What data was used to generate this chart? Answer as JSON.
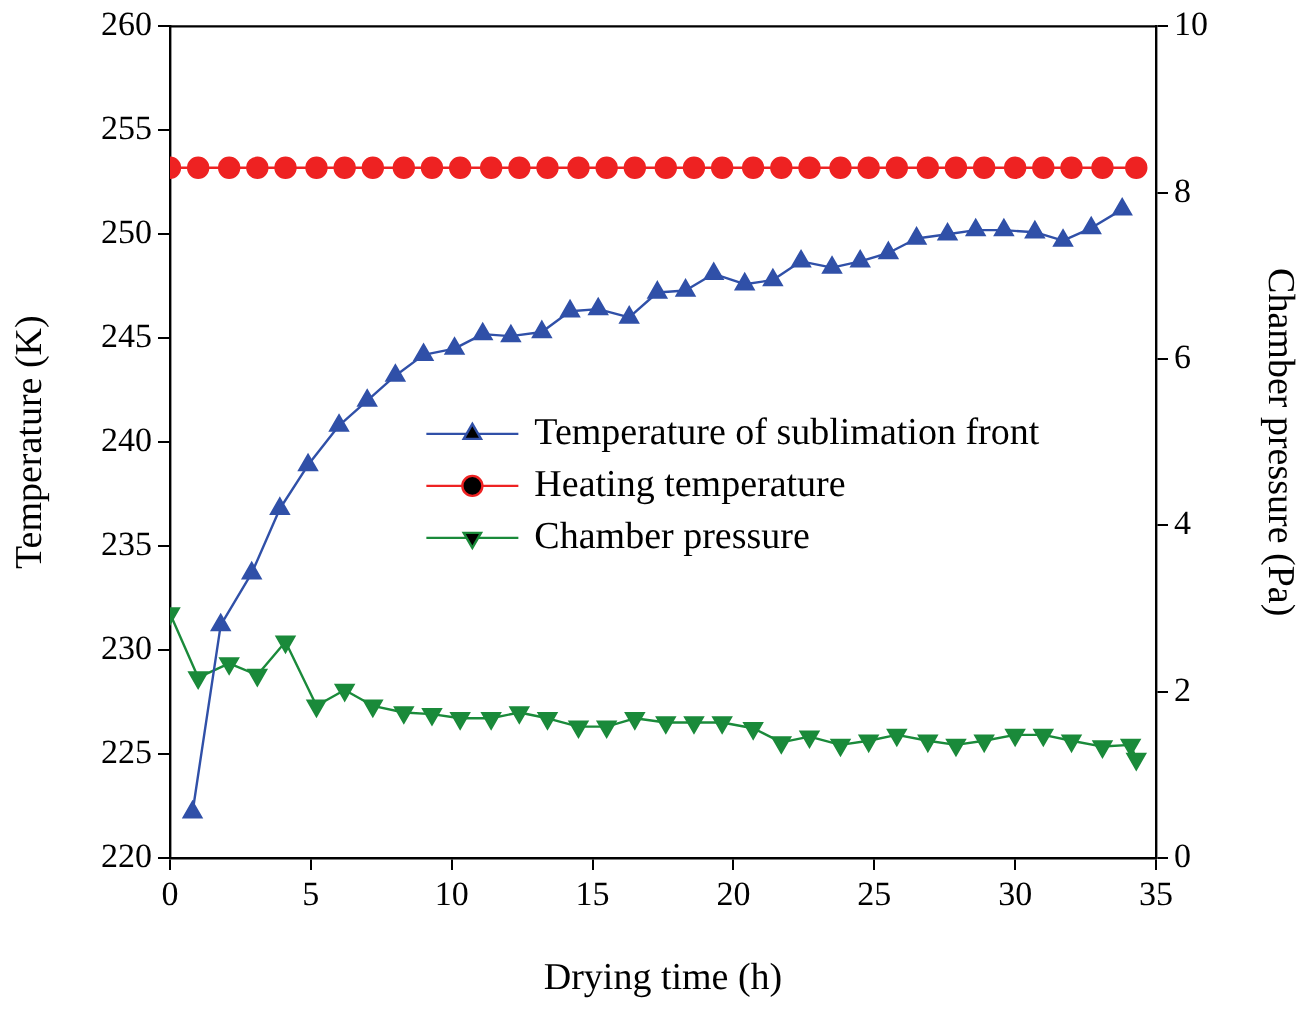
{
  "chart_data": {
    "type": "line",
    "xlabel": "Drying time (h)",
    "ylabel": "Temperature (K)",
    "y2label": "Chamber pressure (Pa)",
    "xlim": [
      0,
      35
    ],
    "xticks": [
      0,
      5,
      10,
      15,
      20,
      25,
      30,
      35
    ],
    "ylim": [
      220,
      260
    ],
    "yticks": [
      220,
      225,
      230,
      235,
      240,
      245,
      250,
      255,
      260
    ],
    "y2lim": [
      0,
      10
    ],
    "y2ticks": [
      0,
      2,
      4,
      6,
      8,
      10
    ],
    "grid": false,
    "legend": "right",
    "line_style": "solid",
    "series": [
      {
        "name": "Temperature of sublimation front",
        "color": "#3050a8",
        "marker": "triangle",
        "x": [
          0.8,
          1.8,
          2.9,
          3.9,
          4.9,
          6.0,
          7.0,
          8.0,
          9.0,
          10.1,
          11.1,
          12.1,
          13.2,
          14.2,
          15.2,
          16.3,
          17.3,
          18.3,
          19.3,
          20.4,
          21.4,
          22.4,
          23.5,
          24.5,
          25.5,
          26.5,
          27.6,
          28.6,
          29.6,
          30.7,
          31.7,
          32.7,
          33.8
        ],
        "values": [
          222.2,
          231.2,
          233.7,
          236.8,
          238.9,
          240.8,
          242.0,
          243.2,
          244.2,
          244.5,
          245.2,
          245.1,
          245.3,
          246.3,
          246.4,
          246.0,
          247.2,
          247.3,
          248.1,
          247.6,
          247.8,
          248.7,
          248.4,
          248.7,
          249.1,
          249.8,
          250.0,
          250.2,
          250.2,
          250.1,
          249.7,
          250.3,
          251.2
        ]
      },
      {
        "name": "Heating temperature",
        "color": "#ee2222",
        "marker": "circle",
        "x": [
          0,
          1.0,
          2.1,
          3.1,
          4.1,
          5.2,
          6.2,
          7.2,
          8.3,
          9.3,
          10.3,
          11.4,
          12.4,
          13.4,
          14.5,
          15.5,
          16.5,
          17.6,
          18.6,
          19.6,
          20.7,
          21.7,
          22.7,
          23.8,
          24.8,
          25.8,
          26.9,
          27.9,
          28.9,
          30.0,
          31.0,
          32.0,
          33.1,
          34.3
        ],
        "values": [
          253.2,
          253.2,
          253.2,
          253.2,
          253.2,
          253.2,
          253.2,
          253.2,
          253.2,
          253.2,
          253.2,
          253.2,
          253.2,
          253.2,
          253.2,
          253.2,
          253.2,
          253.2,
          253.2,
          253.2,
          253.2,
          253.2,
          253.2,
          253.2,
          253.2,
          253.2,
          253.2,
          253.2,
          253.2,
          253.2,
          253.2,
          253.2,
          253.2,
          253.2
        ]
      },
      {
        "name": "Chamber pressure",
        "color": "#1a8a3a",
        "marker": "triangle-down",
        "axis": "y2",
        "x": [
          0,
          1.0,
          2.1,
          3.1,
          4.1,
          5.2,
          6.2,
          7.2,
          8.3,
          9.3,
          10.3,
          11.4,
          12.4,
          13.4,
          14.5,
          15.5,
          16.5,
          17.6,
          18.6,
          19.6,
          20.7,
          21.7,
          22.7,
          23.8,
          24.8,
          25.8,
          26.9,
          27.9,
          28.9,
          30.0,
          31.0,
          32.0,
          33.1,
          34.1,
          34.3
        ],
        "values": [
          2.94,
          2.17,
          2.34,
          2.2,
          2.6,
          1.83,
          2.02,
          1.83,
          1.75,
          1.73,
          1.68,
          1.68,
          1.75,
          1.68,
          1.58,
          1.58,
          1.68,
          1.63,
          1.63,
          1.63,
          1.56,
          1.39,
          1.46,
          1.36,
          1.41,
          1.48,
          1.41,
          1.36,
          1.41,
          1.48,
          1.48,
          1.41,
          1.34,
          1.36,
          1.19
        ]
      }
    ]
  }
}
